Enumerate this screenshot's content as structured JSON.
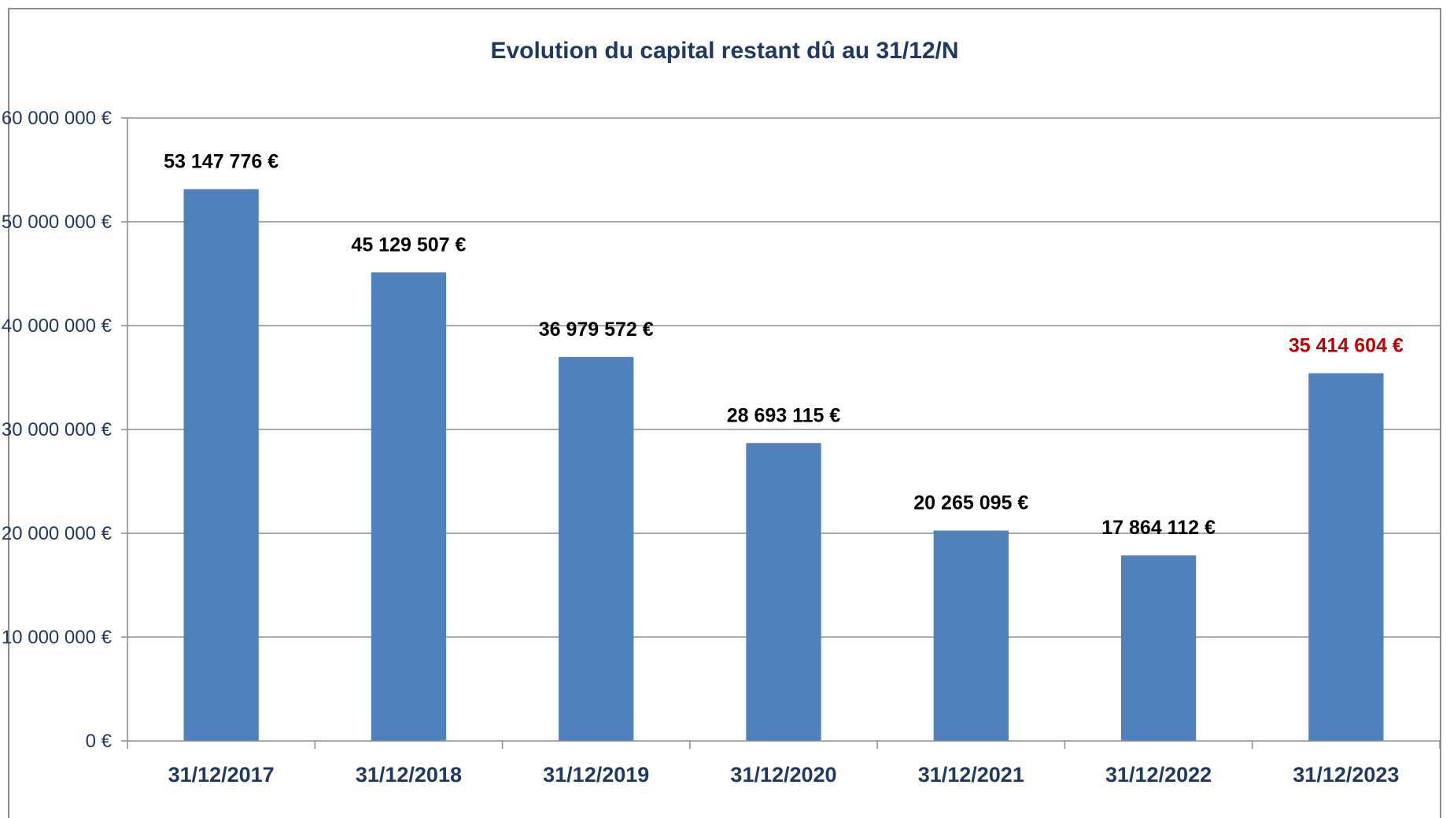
{
  "chart_data": {
    "type": "bar",
    "title": "Evolution du capital restant dû au 31/12/N",
    "xlabel": "",
    "ylabel": "",
    "categories": [
      "31/12/2017",
      "31/12/2018",
      "31/12/2019",
      "31/12/2020",
      "31/12/2021",
      "31/12/2022",
      "31/12/2023"
    ],
    "values": [
      53147776,
      45129507,
      36979572,
      28693115,
      20265095,
      17864112,
      35414604
    ],
    "data_labels": [
      "53 147 776 €",
      "45 129 507 €",
      "36 979 572 €",
      "28 693 115 €",
      "20 265 095 €",
      "17 864 112 €",
      "35 414 604 €"
    ],
    "ylim": [
      0,
      60000000
    ],
    "yticks": [
      0,
      10000000,
      20000000,
      30000000,
      40000000,
      50000000,
      60000000
    ],
    "ytick_labels": [
      "0 €",
      "10 000 000 €",
      "20 000 000 €",
      "30 000 000 €",
      "40 000 000 €",
      "50 000 000 €",
      "60 000 000 €"
    ],
    "grid": true,
    "legend": "none",
    "bar_color": "#4f81bd",
    "label_color": "#000000",
    "highlight_label_color": "#c00000",
    "highlight_index": 6,
    "axis_text_color": "#1f3864"
  }
}
